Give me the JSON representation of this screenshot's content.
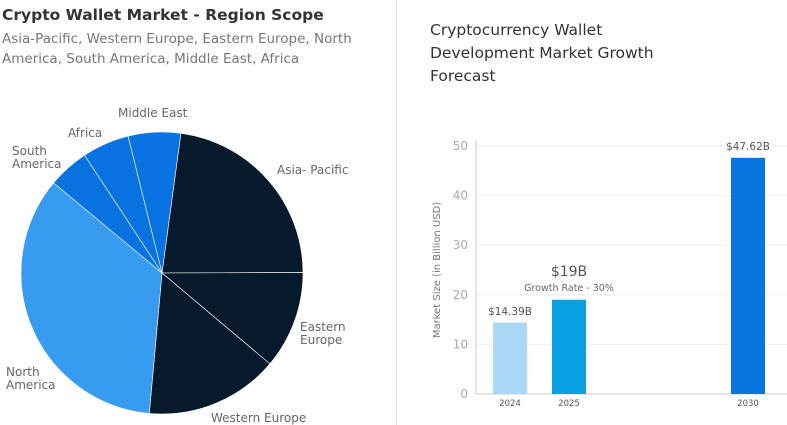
{
  "left": {
    "title": "Crypto Wallet Market - Region Scope",
    "subtitle": "Asia-Pacific, Western Europe, Eastern Europe, North America, South America, Middle East, Africa"
  },
  "right": {
    "title": "Cryptocurrency Wallet Development Market Growth Forecast"
  },
  "chart_data": [
    {
      "type": "pie",
      "title": "Crypto Wallet Market - Region Scope",
      "slices": [
        {
          "label": "Asia- Pacific",
          "value": 22.8,
          "color": "#071a2c",
          "lines": [
            "Asia- Pacific"
          ]
        },
        {
          "label": "Eastern Europe",
          "value": 11.2,
          "color": "#071a2c",
          "lines": [
            "Eastern",
            "Europe"
          ]
        },
        {
          "label": "Western Europe",
          "value": 15.3,
          "color": "#071a2c",
          "lines": [
            "Western Europe"
          ]
        },
        {
          "label": "North America",
          "value": 34.6,
          "color": "#379bef",
          "lines": [
            "North",
            "America"
          ]
        },
        {
          "label": "South America",
          "value": 4.7,
          "color": "#0873e0",
          "lines": [
            "South",
            "America"
          ]
        },
        {
          "label": "Africa",
          "value": 5.4,
          "color": "#0873e0",
          "lines": [
            "Africa"
          ]
        },
        {
          "label": "Middle East",
          "value": 6.0,
          "color": "#0873e0",
          "lines": [
            "Middle East"
          ]
        }
      ]
    },
    {
      "type": "bar",
      "title": "Cryptocurrency Wallet Development Market Growth Forecast",
      "categories": [
        "2024",
        "2025",
        "2030"
      ],
      "values": [
        14.39,
        19,
        47.62
      ],
      "value_labels": [
        "$14.39B",
        "$19B",
        "$47.62B"
      ],
      "colors": [
        "#acd8f7",
        "#07a0e2",
        "#0876e0"
      ],
      "annotation": "Growth Rate - 30%",
      "ylabel": "Market Size (in Billion USD)",
      "xlabel": "",
      "ylim": [
        0,
        50
      ],
      "yticks": [
        0,
        10,
        20,
        30,
        40,
        50
      ],
      "grid": true
    }
  ]
}
